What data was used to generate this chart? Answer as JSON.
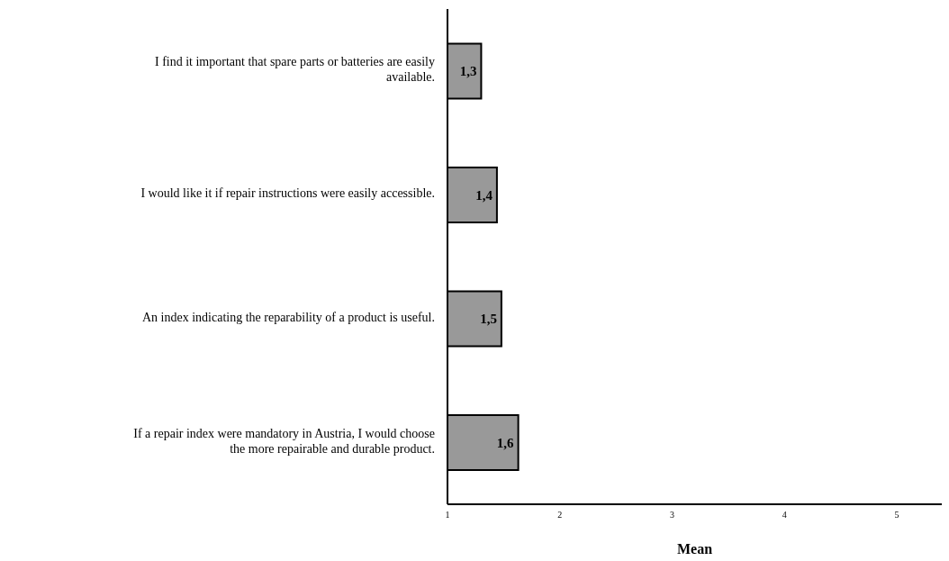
{
  "chart_data": {
    "type": "bar",
    "orientation": "horizontal",
    "xlabel": "Mean",
    "categories": [
      "I find it important that spare parts or batteries are easily available.",
      "I would like it if repair instructions were easily accessible.",
      "An index indicating the reparability of a product is useful.",
      "If a repair index were mandatory in Austria, I would choose the more repairable and durable product."
    ],
    "values": [
      1.3,
      1.44,
      1.48,
      1.63
    ],
    "value_labels": [
      "1,3",
      "1,4",
      "1,5",
      "1,6"
    ],
    "color": "#999999",
    "xlim": [
      1,
      5.4
    ],
    "xticks": [
      1,
      2,
      3,
      4,
      5
    ],
    "grid": false,
    "legend": false
  }
}
